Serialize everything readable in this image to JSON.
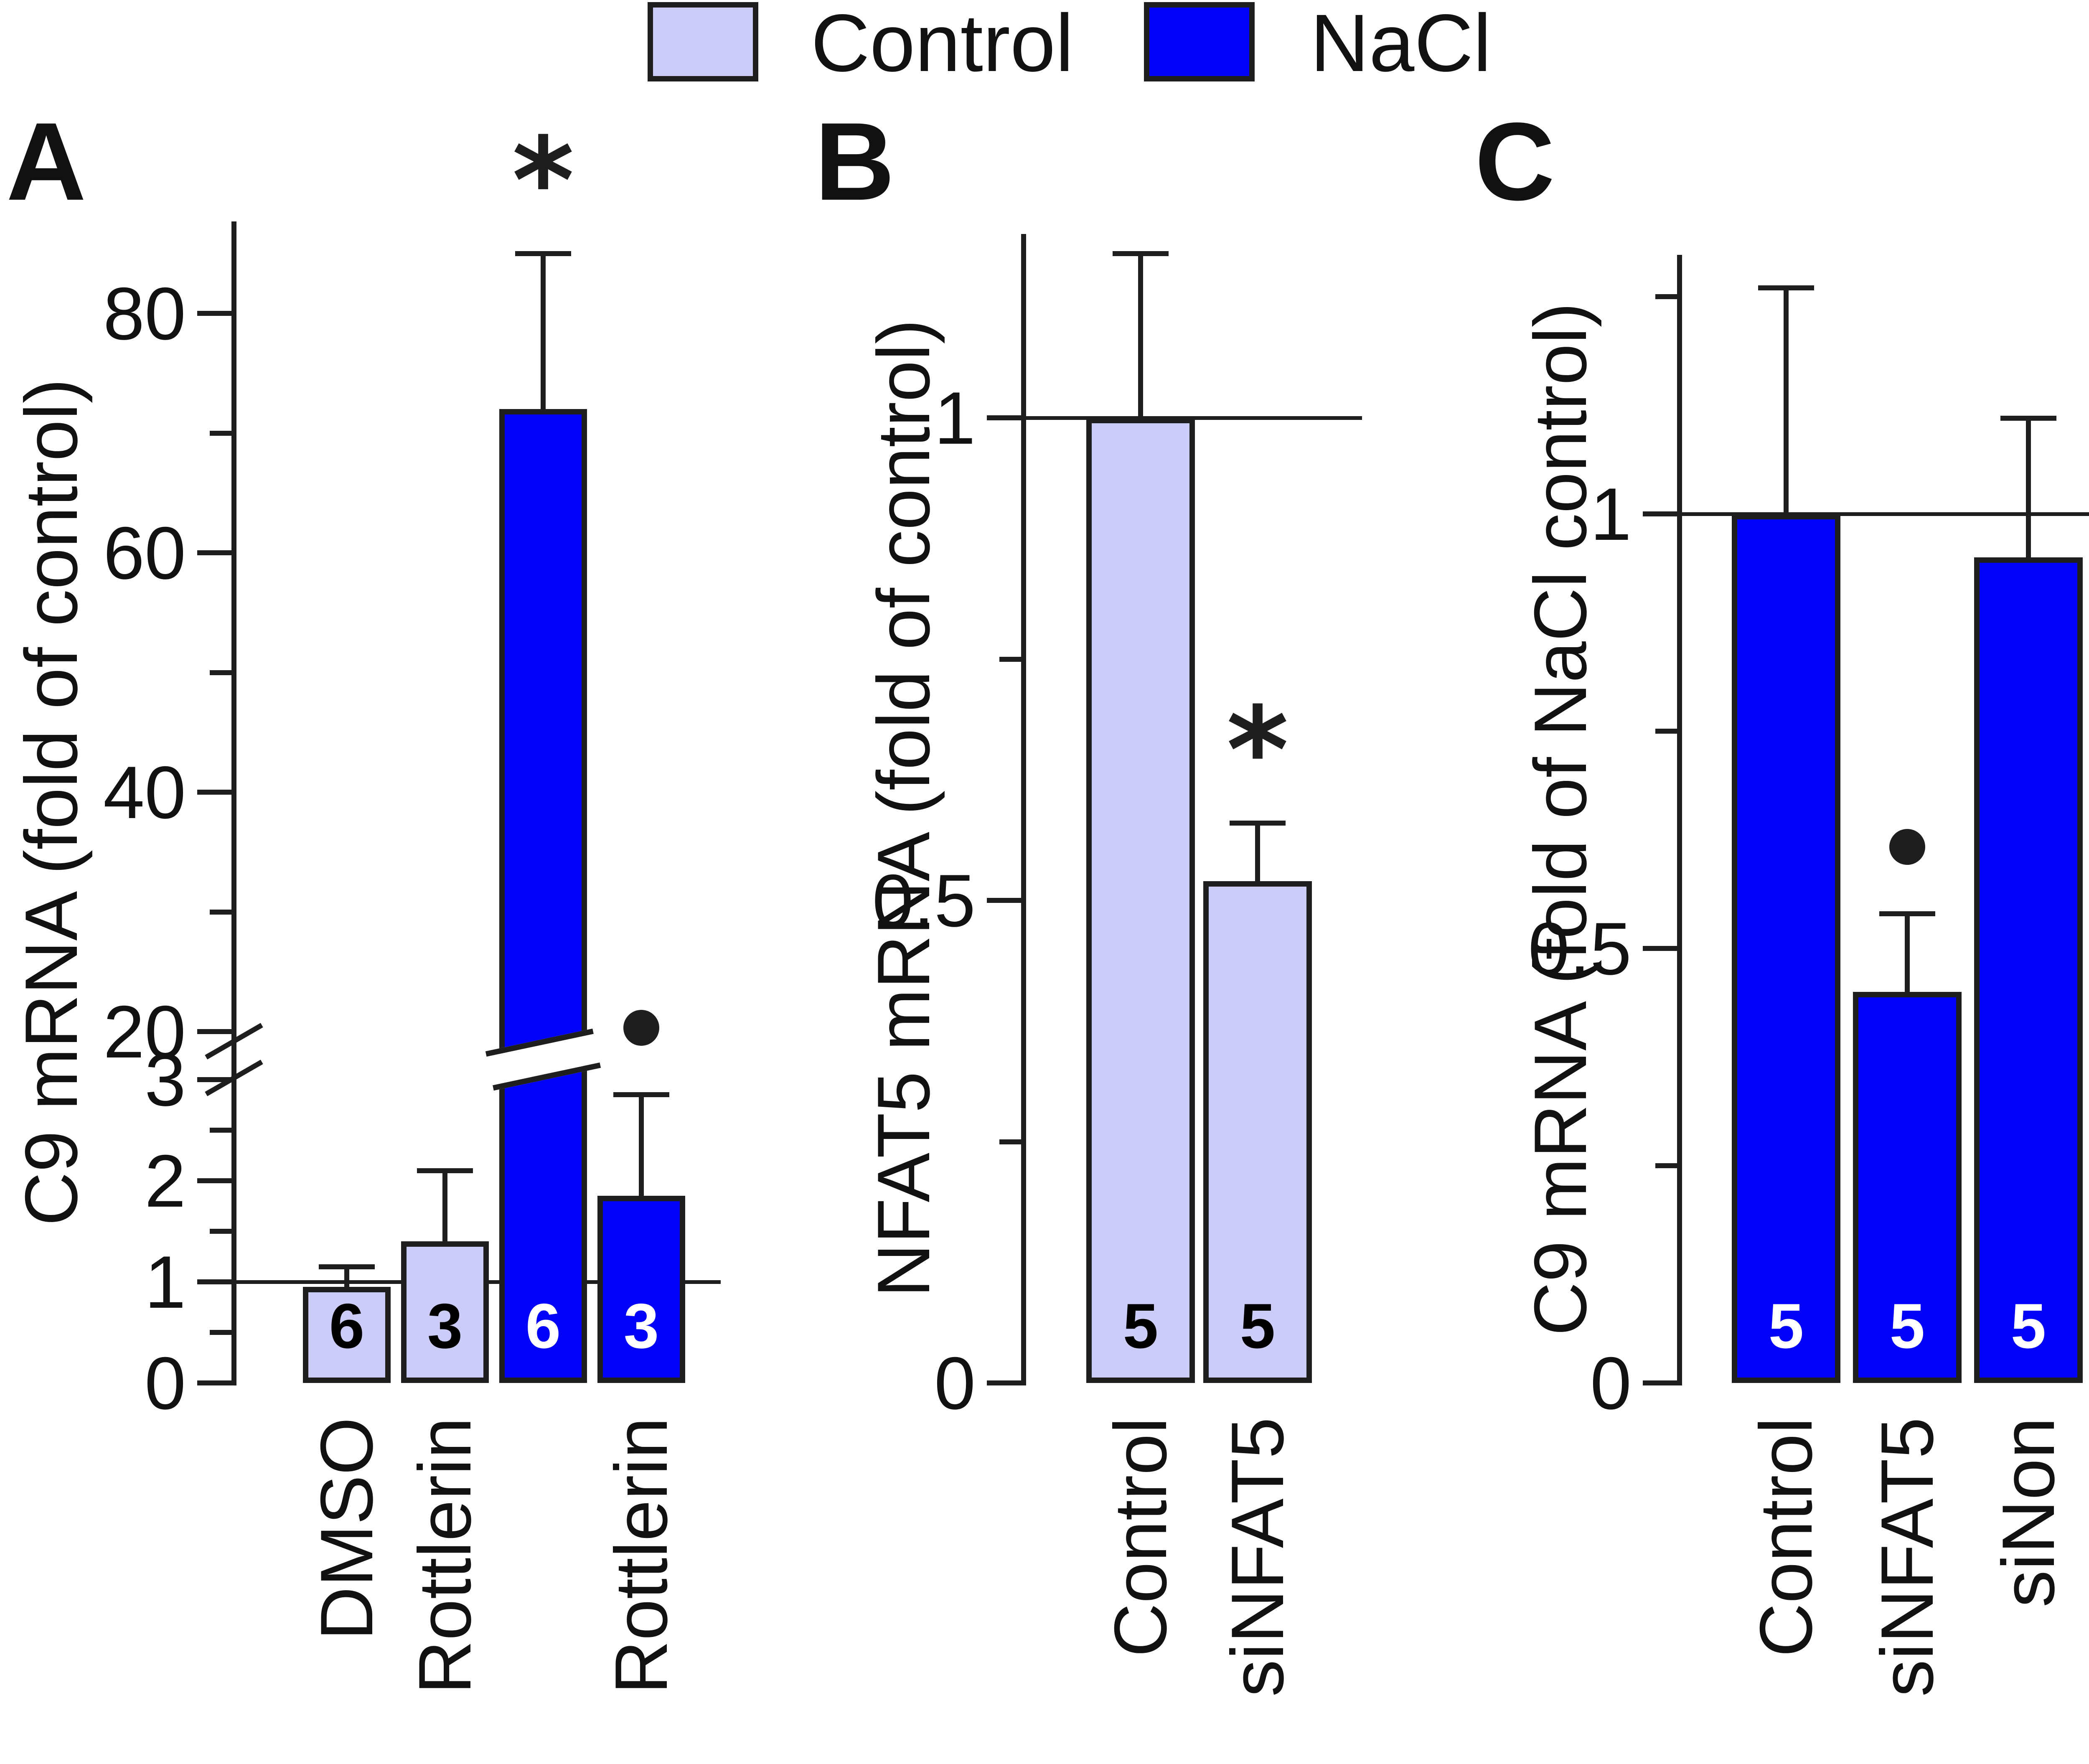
{
  "legend": {
    "items": [
      {
        "label": "Control",
        "color": "#ccccf8"
      },
      {
        "label": "NaCl",
        "color": "#0202f8"
      }
    ]
  },
  "chart_data": [
    {
      "type": "bar",
      "panel": "A",
      "ylabel": "C9 mRNA (fold of control)",
      "y_axis": {
        "broken": true,
        "lower_ticks": [
          0,
          1,
          2,
          3
        ],
        "lower_minor_ticks": [
          0.5,
          1.5,
          2.5
        ],
        "upper_ticks": [
          20,
          40,
          60,
          80
        ],
        "upper_minor_ticks": [
          30,
          50,
          70
        ],
        "lower_range": [
          0,
          3.3
        ],
        "upper_range": [
          17,
          87
        ]
      },
      "reference_line": 1,
      "categories": [
        "DMSO",
        "Rottlerin",
        "",
        "Rottlerin"
      ],
      "bars": [
        {
          "category": "DMSO",
          "series": "Control",
          "value": 0.95,
          "error_top": 1.15,
          "n": 6,
          "annotation": ""
        },
        {
          "category": "Rottlerin",
          "series": "Control",
          "value": 1.4,
          "error_top": 2.1,
          "n": 3,
          "annotation": ""
        },
        {
          "category": "",
          "series": "NaCl",
          "value": 72,
          "error_top": 85,
          "n": 6,
          "annotation": "*"
        },
        {
          "category": "Rottlerin",
          "series": "NaCl",
          "value": 1.85,
          "error_top": 2.85,
          "n": 3,
          "annotation": "●"
        }
      ]
    },
    {
      "type": "bar",
      "panel": "B",
      "ylabel": "NFAT5 mRNA (fold of control)",
      "y_axis": {
        "broken": false,
        "ticks": [
          0,
          0.5,
          1
        ],
        "minor_ticks": [
          0.25,
          0.75
        ],
        "range": [
          0,
          1.19
        ]
      },
      "reference_line": 1,
      "categories": [
        "Control",
        "siNFAT5"
      ],
      "bars": [
        {
          "category": "Control",
          "series": "Control",
          "value": 1.0,
          "error_top": 1.17,
          "n": 5,
          "annotation": ""
        },
        {
          "category": "siNFAT5",
          "series": "Control",
          "value": 0.52,
          "error_top": 0.58,
          "n": 5,
          "annotation": "*"
        }
      ]
    },
    {
      "type": "bar",
      "panel": "C",
      "ylabel": "C9 mRNA (fold of NaCl control)",
      "y_axis": {
        "broken": false,
        "ticks": [
          0,
          0.5,
          1
        ],
        "minor_ticks": [
          0.25,
          0.75,
          1.25
        ],
        "range": [
          0,
          1.3
        ]
      },
      "reference_line": 1,
      "categories": [
        "Control",
        "siNFAT5",
        "siNon"
      ],
      "bars": [
        {
          "category": "Control",
          "series": "NaCl",
          "value": 1.0,
          "error_top": 1.26,
          "n": 5,
          "annotation": ""
        },
        {
          "category": "siNFAT5",
          "series": "NaCl",
          "value": 0.45,
          "error_top": 0.54,
          "n": 5,
          "annotation": "●"
        },
        {
          "category": "siNon",
          "series": "NaCl",
          "value": 0.95,
          "error_top": 1.11,
          "n": 5,
          "annotation": ""
        }
      ]
    }
  ]
}
